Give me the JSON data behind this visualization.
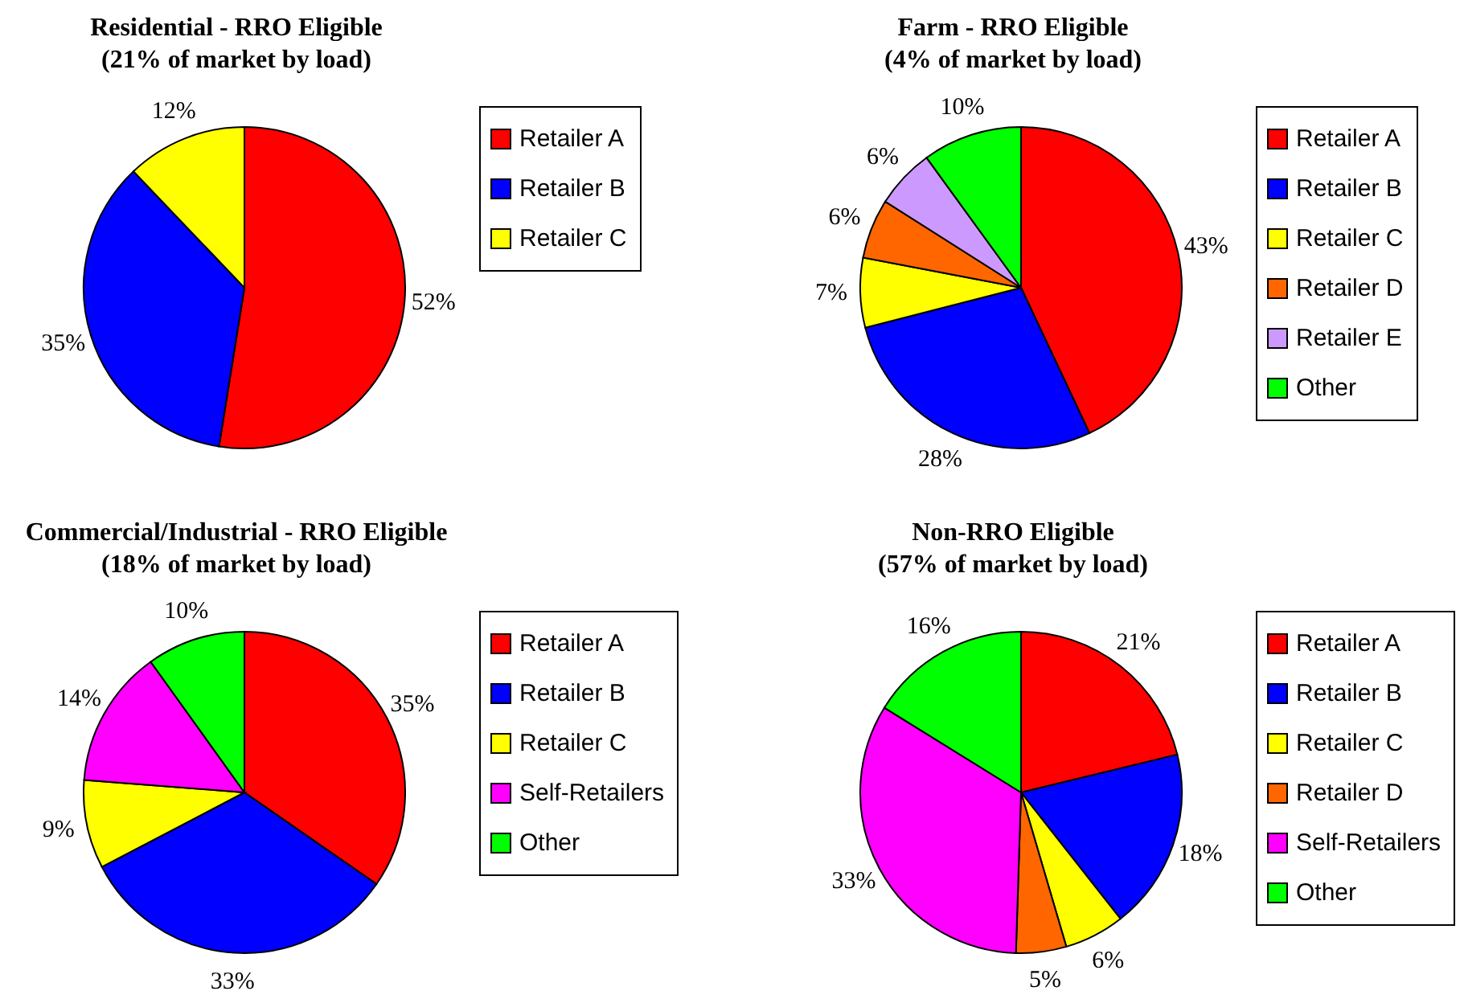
{
  "chart_data": [
    {
      "type": "pie",
      "title": "Residential - RRO Eligible",
      "subtitle": "(21% of market by load)",
      "categories": [
        "Retailer A",
        "Retailer B",
        "Retailer C"
      ],
      "values": [
        52,
        35,
        12
      ],
      "value_labels": [
        "52%",
        "35%",
        "12%"
      ],
      "colors": [
        "#ff0000",
        "#0000ff",
        "#ffff00"
      ],
      "legend": "right"
    },
    {
      "type": "pie",
      "title": "Farm - RRO Eligible",
      "subtitle": "(4% of market by load)",
      "categories": [
        "Retailer A",
        "Retailer B",
        "Retailer C",
        "Retailer D",
        "Retailer E",
        "Other"
      ],
      "values": [
        43,
        28,
        7,
        6,
        6,
        10
      ],
      "value_labels": [
        "43%",
        "28%",
        "7%",
        "6%",
        "6%",
        "10%"
      ],
      "colors": [
        "#ff0000",
        "#0000ff",
        "#ffff00",
        "#ff6600",
        "#cc99ff",
        "#00ff00"
      ],
      "legend": "right"
    },
    {
      "type": "pie",
      "title": "Commercial/Industrial - RRO Eligible",
      "subtitle": "(18% of market by load)",
      "categories": [
        "Retailer A",
        "Retailer B",
        "Retailer C",
        "Self-Retailers",
        "Other"
      ],
      "values": [
        35,
        33,
        9,
        14,
        10
      ],
      "value_labels": [
        "35%",
        "33%",
        "9%",
        "14%",
        "10%"
      ],
      "colors": [
        "#ff0000",
        "#0000ff",
        "#ffff00",
        "#ff00ff",
        "#00ff00"
      ],
      "legend": "right"
    },
    {
      "type": "pie",
      "title": "Non-RRO Eligible",
      "subtitle": "(57% of market by load)",
      "categories": [
        "Retailer A",
        "Retailer B",
        "Retailer C",
        "Retailer D",
        "Self-Retailers",
        "Other"
      ],
      "values": [
        21,
        18,
        6,
        5,
        33,
        16
      ],
      "value_labels": [
        "21%",
        "18%",
        "6%",
        "5%",
        "33%",
        "16%"
      ],
      "colors": [
        "#ff0000",
        "#0000ff",
        "#ffff00",
        "#ff6600",
        "#ff00ff",
        "#00ff00"
      ],
      "legend": "right"
    }
  ]
}
